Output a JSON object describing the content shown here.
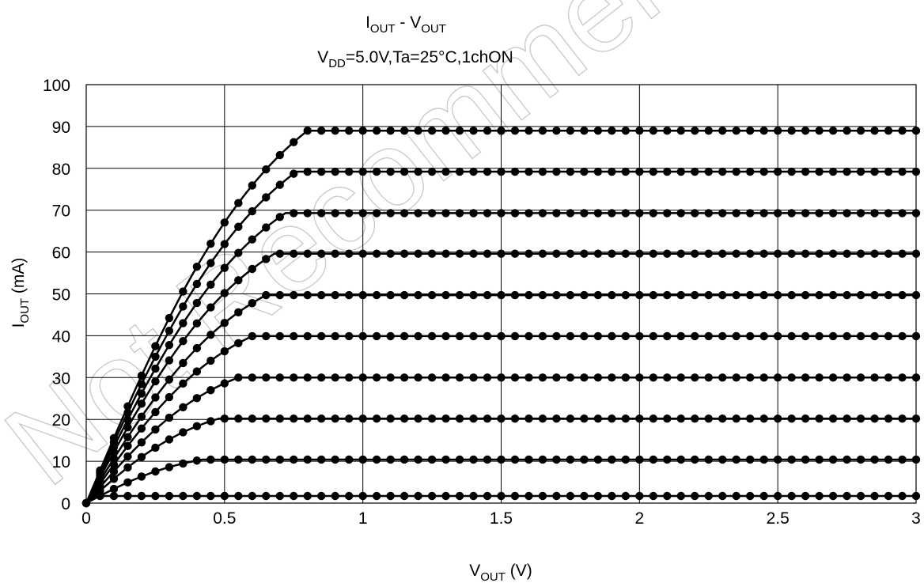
{
  "chart_data": {
    "type": "line",
    "title_main": "I",
    "title_main_sub": "OUT",
    "title_sep": " - V",
    "title_sep_sub": "OUT",
    "subtitle_v": "V",
    "subtitle_sub": "DD",
    "subtitle_rest": "=5.0V,Ta=25°C,1chON",
    "xlabel_v": "V",
    "xlabel_sub": "OUT",
    "xlabel_rest": " (V)",
    "ylabel_i": "I",
    "ylabel_sub": "OUT",
    "ylabel_rest": " (mA)",
    "xlim": [
      0,
      3
    ],
    "ylim": [
      0,
      100
    ],
    "xticks": [
      "0",
      "0.5",
      "1",
      "1.5",
      "2",
      "2.5",
      "3"
    ],
    "yticks": [
      "0",
      "10",
      "20",
      "30",
      "40",
      "50",
      "60",
      "70",
      "80",
      "90",
      "100"
    ],
    "grid": true,
    "marker_step_v": 0.05,
    "series": [
      {
        "saturation_ma": 1.7,
        "knee_v": 0.04
      },
      {
        "saturation_ma": 10.4,
        "knee_v": 0.42
      },
      {
        "saturation_ma": 20.2,
        "knee_v": 0.48
      },
      {
        "saturation_ma": 30.0,
        "knee_v": 0.55
      },
      {
        "saturation_ma": 39.9,
        "knee_v": 0.6
      },
      {
        "saturation_ma": 49.7,
        "knee_v": 0.65
      },
      {
        "saturation_ma": 59.6,
        "knee_v": 0.68
      },
      {
        "saturation_ma": 69.3,
        "knee_v": 0.72
      },
      {
        "saturation_ma": 79.2,
        "knee_v": 0.76
      },
      {
        "saturation_ma": 89.0,
        "knee_v": 0.8
      }
    ],
    "watermark": "Not Recommended for New Designs"
  }
}
